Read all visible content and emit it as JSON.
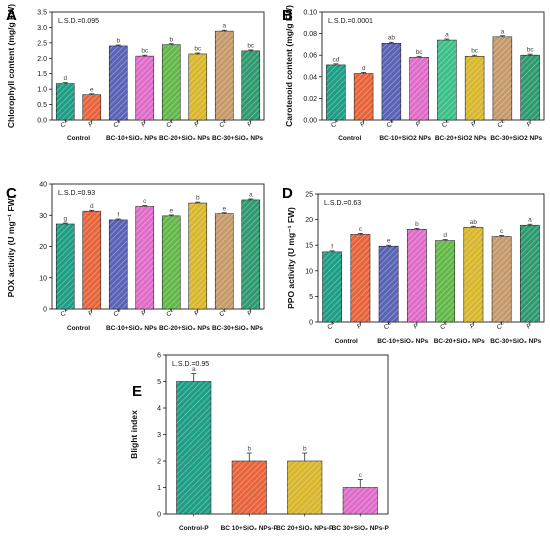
{
  "chart_data": [
    {
      "panel": "A",
      "type": "bar",
      "categories": [
        "C^A",
        "P",
        "C^B",
        "P",
        "C^C",
        "P",
        "C^C",
        "P"
      ],
      "groups": [
        "Control",
        "BC-10+SiO₂ NPs",
        "BC-20+SiO₂ NPs",
        "BC-30+SiO₂ NPs"
      ],
      "values": [
        1.18,
        0.82,
        2.4,
        2.07,
        2.44,
        2.14,
        2.88,
        2.24
      ],
      "errors": [
        0.03,
        0.03,
        0.03,
        0.03,
        0.03,
        0.03,
        0.03,
        0.03
      ],
      "letters": [
        "d",
        "e",
        "b",
        "bc",
        "b",
        "bc",
        "a",
        "bc"
      ],
      "ylabel": "Chlorophyll content (mg/g FW)",
      "ylim": [
        0,
        3.5
      ],
      "yticks": [
        0.0,
        0.5,
        1.0,
        1.5,
        2.0,
        2.5,
        3.0,
        3.5
      ],
      "annotation": "L.S.D.=0.095",
      "colors": [
        "#1e9e84",
        "#e8643a",
        "#5a63b5",
        "#e06cc9",
        "#63b84a",
        "#d9b72c",
        "#c69a6a",
        "#2f9a70"
      ]
    },
    {
      "panel": "B",
      "type": "bar",
      "categories": [
        "C^A",
        "P",
        "C^B",
        "P",
        "C^C",
        "P",
        "C^C",
        "P"
      ],
      "groups": [
        "Control",
        "BC-10+SiO2 NPs",
        "BC-20+SiO2 NPs",
        "BC-30+SiO2 NPs"
      ],
      "values": [
        0.051,
        0.043,
        0.071,
        0.058,
        0.074,
        0.059,
        0.077,
        0.06
      ],
      "errors": [
        0.001,
        0.001,
        0.001,
        0.001,
        0.001,
        0.001,
        0.001,
        0.001
      ],
      "letters": [
        "cd",
        "d",
        "ab",
        "bc",
        "a",
        "bc",
        "a",
        "bc"
      ],
      "ylabel": "Carotenoid content (mg/g FW)",
      "ylim": [
        0,
        0.1
      ],
      "yticks": [
        0.0,
        0.02,
        0.04,
        0.06,
        0.08,
        0.1
      ],
      "annotation": "L.S.D.=0.0001",
      "colors": [
        "#1e9e84",
        "#e8643a",
        "#5a63b5",
        "#e06cc9",
        "#3cbf8a",
        "#d9b72c",
        "#c69a6a",
        "#2f9a70"
      ]
    },
    {
      "panel": "C",
      "type": "bar",
      "categories": [
        "C^A",
        "P",
        "C^B",
        "P",
        "C^C",
        "P",
        "C^C",
        "P"
      ],
      "groups": [
        "Control",
        "BC-10+SiO₂ NPs",
        "BC-20+SiO₂ NPs",
        "BC-30+SiO₂ NPs"
      ],
      "values": [
        27.2,
        31.3,
        28.5,
        32.8,
        29.8,
        33.9,
        30.5,
        34.9
      ],
      "errors": [
        0.3,
        0.3,
        0.3,
        0.3,
        0.3,
        0.3,
        0.3,
        0.3
      ],
      "letters": [
        "g",
        "d",
        "f",
        "c",
        "e",
        "b",
        "e",
        "a"
      ],
      "ylabel": "POX activity (U mg⁻¹ FW)",
      "ylim": [
        0,
        40
      ],
      "yticks": [
        0,
        10,
        20,
        30,
        40
      ],
      "annotation": "L.S.D.=0.93",
      "colors": [
        "#1e9e84",
        "#e8643a",
        "#5a63b5",
        "#e06cc9",
        "#63b84a",
        "#d9b72c",
        "#c69a6a",
        "#2f9a70"
      ]
    },
    {
      "panel": "D",
      "type": "bar",
      "categories": [
        "C^A",
        "P",
        "C^B",
        "P",
        "C^C",
        "P",
        "C^C",
        "P"
      ],
      "groups": [
        "Control",
        "BC-10+SiO₂ NPs",
        "BC-20+SiO₂ NPs",
        "BC-30+SiO₂ NPs"
      ],
      "values": [
        13.7,
        17.1,
        14.8,
        18.1,
        15.9,
        18.5,
        16.7,
        18.9
      ],
      "errors": [
        0.2,
        0.2,
        0.2,
        0.2,
        0.2,
        0.2,
        0.2,
        0.2
      ],
      "letters": [
        "f",
        "c",
        "e",
        "b",
        "d",
        "ab",
        "c",
        "a"
      ],
      "ylabel": "PPO activity (U mg⁻¹ FW)",
      "ylim": [
        0,
        25
      ],
      "yticks": [
        0,
        5,
        10,
        15,
        20,
        25
      ],
      "annotation": "L.S.D.=0.63",
      "colors": [
        "#1e9e84",
        "#e8643a",
        "#5a63b5",
        "#e06cc9",
        "#63b84a",
        "#d9b72c",
        "#c69a6a",
        "#2f9a70"
      ]
    },
    {
      "panel": "E",
      "type": "bar",
      "categories": [
        "Control-P",
        "BC 10+SiO₂ NPs-P",
        "BC 20+SiO₂ NPs-P",
        "BC 30+SiO₂ NPs-P"
      ],
      "values": [
        5,
        2,
        2,
        1
      ],
      "errors": [
        0.3,
        0.3,
        0.3,
        0.3
      ],
      "letters": [
        "a",
        "b",
        "b",
        "c"
      ],
      "ylabel": "Blight index",
      "ylim": [
        0,
        6
      ],
      "yticks": [
        0,
        1,
        2,
        3,
        4,
        5,
        6
      ],
      "annotation": "L.S.D.=0.95",
      "colors": [
        "#1e9e84",
        "#e8643a",
        "#d9b72c",
        "#e06cc9"
      ]
    }
  ]
}
